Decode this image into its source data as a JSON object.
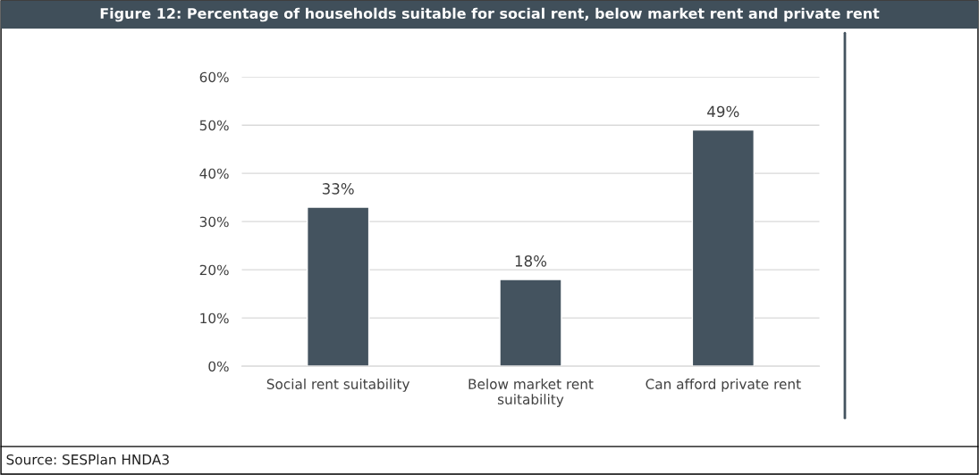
{
  "chart_data": {
    "type": "bar",
    "title": "Figure 12: Percentage of households suitable for social rent, below market rent and private rent",
    "categories": [
      "Social rent suitability",
      "Below market rent suitability",
      "Can afford private rent"
    ],
    "values": [
      33,
      18,
      49
    ],
    "value_labels": [
      "33%",
      "18%",
      "49%"
    ],
    "color": "#44535f",
    "ylim": [
      0,
      60
    ],
    "yticks": [
      {
        "value": 0,
        "label": "0%"
      },
      {
        "value": 10,
        "label": "10%"
      },
      {
        "value": 20,
        "label": "20%"
      },
      {
        "value": 30,
        "label": "30%"
      },
      {
        "value": 40,
        "label": "40%"
      },
      {
        "value": 50,
        "label": "50%"
      },
      {
        "value": 60,
        "label": "60%"
      }
    ],
    "grid": "y",
    "annotations": [
      "Source: SESPlan HNDA3"
    ]
  }
}
